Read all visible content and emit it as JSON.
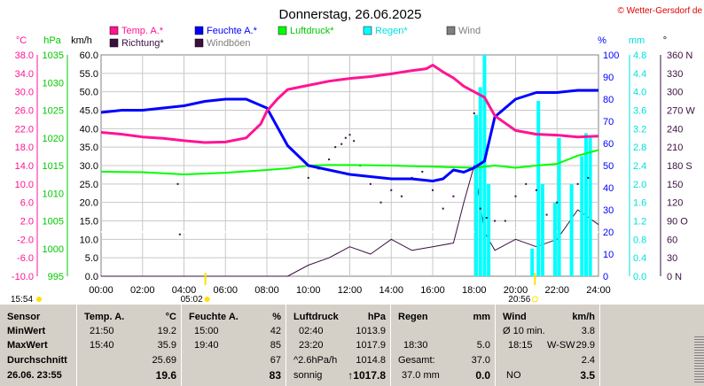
{
  "title": "Donnerstag, 26.06.2025",
  "copyright": "© Wetter-Gersdorf de",
  "legend": [
    {
      "label": "Temp. A.*",
      "color": "#ff1493",
      "text_color": "#ff1493"
    },
    {
      "label": "Feuchte A.*",
      "color": "#0000ff",
      "text_color": "#0000ff"
    },
    {
      "label": "Luftdruck*",
      "color": "#00ff00",
      "text_color": "#00c800"
    },
    {
      "label": "Regen*",
      "color": "#00ffff",
      "text_color": "#00e0e0"
    },
    {
      "label": "Wind",
      "color": "#7f7f7f",
      "text_color": "#7f7f7f"
    },
    {
      "label": "Richtung*",
      "color": "#3a1040",
      "text_color": "#3a1040"
    },
    {
      "label": "Windböen",
      "color": "#3a1040",
      "text_color": "#7f7f7f"
    }
  ],
  "unit_labels": {
    "temp": "°C",
    "pressure": "hPa",
    "wind": "km/h",
    "humidity": "%",
    "rain": "mm",
    "direction": "°"
  },
  "axes": {
    "temp": [
      "38.0",
      "34.0",
      "30.0",
      "26.0",
      "22.0",
      "18.0",
      "14.0",
      "10.0",
      "6.0",
      "2.0",
      "-2.0",
      "-6.0",
      "-10.0"
    ],
    "pressure": [
      "1035",
      "1030",
      "1025",
      "1020",
      "1015",
      "1010",
      "1005",
      "1000",
      "995"
    ],
    "wind": [
      "60.0",
      "55.0",
      "50.0",
      "45.0",
      "40.0",
      "35.0",
      "30.0",
      "25.0",
      "20.0",
      "15.0",
      "10.0",
      "5.0",
      "0.0"
    ],
    "humidity": [
      "100",
      "90",
      "80",
      "70",
      "60",
      "50",
      "40",
      "30",
      "20",
      "10",
      "0"
    ],
    "rain": [
      "4.8",
      "4.4",
      "4.0",
      "3.6",
      "3.2",
      "2.8",
      "2.4",
      "2.0",
      "1.6",
      "1.2",
      "0.8",
      "0.4",
      "0.0"
    ],
    "direction": [
      "360 N",
      "330",
      "300",
      "270 W",
      "240",
      "210",
      "180 S",
      "150",
      "120",
      "90 O",
      "60",
      "30",
      "0 N"
    ],
    "time": [
      "00:00",
      "02:00",
      "04:00",
      "06:00",
      "08:00",
      "10:00",
      "12:00",
      "14:00",
      "16:00",
      "18:00",
      "20:00",
      "22:00",
      "24:00"
    ]
  },
  "sun_markers": {
    "sunrise": "05:02",
    "sunset": "20:56",
    "moon_time": "15:54"
  },
  "chart_data": {
    "type": "line",
    "title": "Donnerstag, 26.06.2025",
    "x_range_hours": [
      0,
      24
    ],
    "ylim_wind_kmh": [
      0,
      60
    ],
    "ylim_humidity_pct": [
      0,
      100
    ],
    "ylim_pressure_hpa": [
      995,
      1035
    ],
    "ylim_temp_c": [
      -10,
      38
    ],
    "ylim_rain_mm": [
      0,
      4.8
    ],
    "grid": true,
    "legend_position": "top",
    "series": [
      {
        "name": "Temp. A.*",
        "unit": "°C",
        "color": "#ff1493",
        "x": [
          0,
          1,
          2,
          3,
          4,
          5,
          6,
          7,
          7.7,
          8,
          8.5,
          9,
          10,
          11,
          12,
          13,
          14,
          15,
          15.7,
          16,
          16.5,
          17,
          17.5,
          18,
          18.5,
          19,
          20,
          21,
          22,
          23,
          24
        ],
        "y": [
          21.2,
          20.8,
          20.2,
          19.9,
          19.4,
          19.0,
          19.1,
          20.0,
          23.0,
          25.8,
          28.4,
          30.5,
          31.4,
          32.3,
          32.9,
          33.3,
          33.9,
          34.6,
          35.0,
          35.8,
          34.3,
          33.0,
          31.2,
          30.0,
          28.8,
          24.8,
          21.6,
          20.8,
          20.6,
          20.2,
          20.4
        ]
      },
      {
        "name": "Feuchte A.*",
        "unit": "%",
        "color": "#0000ff",
        "x": [
          0,
          1,
          2,
          3,
          4,
          5,
          6,
          7,
          8,
          9,
          10,
          11,
          12,
          13,
          14,
          15,
          16,
          16.5,
          17,
          17.5,
          18,
          18.5,
          19,
          20,
          21,
          22,
          23,
          24
        ],
        "y": [
          74,
          75,
          75,
          76,
          77,
          79,
          80,
          80,
          76,
          59,
          50,
          48,
          46,
          45,
          44,
          44,
          43,
          44,
          48,
          47,
          49,
          52,
          72,
          80,
          83,
          83,
          84,
          84
        ]
      },
      {
        "name": "Luftdruck*",
        "unit": "hPa",
        "color": "#00ff00",
        "x": [
          0,
          2,
          4,
          6,
          8,
          9,
          10,
          11,
          12,
          14,
          16,
          18,
          19,
          20,
          21,
          22,
          23,
          24
        ],
        "y": [
          1013.9,
          1013.8,
          1013.4,
          1013.7,
          1014.2,
          1014.5,
          1015.0,
          1015.1,
          1015.1,
          1015.0,
          1014.8,
          1014.6,
          1015.0,
          1014.6,
          1015.0,
          1015.3,
          1016.8,
          1017.8
        ]
      },
      {
        "name": "Regen*",
        "unit": "mm",
        "color": "#00ffff",
        "x": [
          18.1,
          18.3,
          18.5,
          18.7,
          20.8,
          21.1,
          21.3,
          21.9,
          22.1,
          22.7,
          23.2,
          23.4,
          23.6
        ],
        "y": [
          3.5,
          4.1,
          4.8,
          2.0,
          0.6,
          3.8,
          2.0,
          1.6,
          3.0,
          2.0,
          2.6,
          3.1,
          3.0
        ]
      },
      {
        "name": "Windböen",
        "unit": "km/h",
        "color": "#3a1040",
        "x": [
          0,
          9,
          10,
          11,
          12,
          13,
          14,
          15,
          16,
          17,
          17.5,
          18,
          18.5,
          19,
          20,
          21,
          22,
          23,
          24
        ],
        "y": [
          0,
          0,
          3,
          5,
          8,
          6,
          10,
          7,
          8,
          9,
          20,
          30,
          12,
          7,
          10,
          8,
          10,
          18,
          14
        ]
      },
      {
        "name": "Richtung*",
        "unit": "°",
        "color": "#3a1040",
        "x": [
          3.7,
          3.8,
          10,
          10.5,
          11,
          11.3,
          11.6,
          11.8,
          12,
          12.2,
          12.5,
          13,
          13.5,
          14,
          14.5,
          15,
          15.5,
          16,
          16.5,
          17,
          17.5,
          18,
          18.3,
          18.6,
          19,
          19.5,
          20,
          20.5,
          21,
          21.5,
          22,
          23,
          23.5
        ],
        "y": [
          150,
          68,
          160,
          175,
          190,
          210,
          215,
          225,
          230,
          220,
          180,
          150,
          120,
          140,
          130,
          160,
          170,
          140,
          110,
          130,
          170,
          265,
          110,
          95,
          90,
          90,
          130,
          150,
          140,
          100,
          120,
          150,
          160
        ]
      }
    ]
  },
  "stats": {
    "sensor": {
      "header": "Sensor",
      "min": "MinWert",
      "max": "MaxWert",
      "avg": "Durchschnitt",
      "current": "26.06. 23:55"
    },
    "temp": {
      "header": "Temp. A.",
      "unit": "°C",
      "min_time": "21:50",
      "min_val": "19.2",
      "max_time": "15:40",
      "max_val": "35.9",
      "avg": "25.69",
      "current": "19.6"
    },
    "humidity": {
      "header": "Feuchte A.",
      "unit": "%",
      "min_time": "15:00",
      "min_val": "42",
      "max_time": "19:40",
      "max_val": "85",
      "avg": "67",
      "current": "83"
    },
    "pressure": {
      "header": "Luftdruck",
      "unit": "hPa",
      "min_time": "02:40",
      "min_val": "1013.9",
      "max_time": "23:20",
      "max_val": "1017.9",
      "avg_label": "^2.6hPa/h",
      "avg": "1014.8",
      "cond": "sonnig",
      "current": "↑1017.8"
    },
    "rain": {
      "header": "Regen",
      "unit": "mm",
      "max_time": "18:30",
      "max_val": "5.0",
      "avg_label": "Gesamt:",
      "avg": "37.0",
      "cur_label": "37.0 mm",
      "current": "0.0"
    },
    "wind": {
      "header": "Wind",
      "unit": "km/h",
      "min_label": "Ø 10 min.",
      "min_val": "3.8",
      "max_time": "18:15",
      "max_dir": "W-SW",
      "max_val": "29.9",
      "avg": "2.4",
      "cur_dir": "NO",
      "current": "3.5"
    }
  }
}
